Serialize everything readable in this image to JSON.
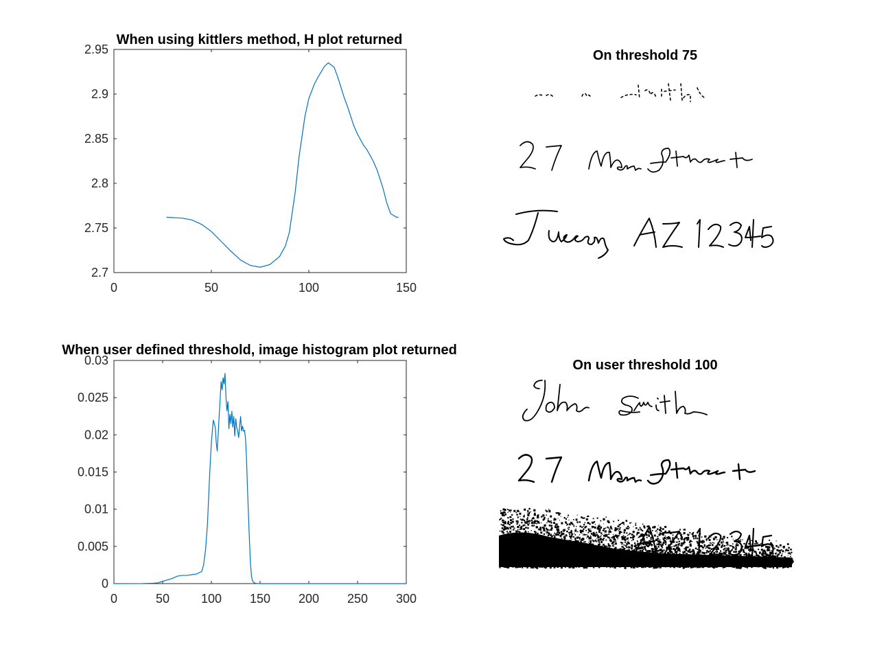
{
  "chart_data": [
    {
      "type": "line",
      "title": "When using kittlers method, H plot returned",
      "xlabel": "",
      "ylabel": "",
      "xlim": [
        0,
        150
      ],
      "ylim": [
        2.7,
        2.95
      ],
      "xticks": [
        0,
        50,
        100,
        150
      ],
      "xtick_labels": [
        "0",
        "50",
        "100",
        "150"
      ],
      "yticks": [
        2.7,
        2.75,
        2.8,
        2.85,
        2.9,
        2.95
      ],
      "ytick_labels": [
        "2.7",
        "2.75",
        "2.8",
        "2.85",
        "2.9",
        "2.95"
      ],
      "grid": false,
      "series": [
        {
          "color": "#0072BD",
          "x": [
            27,
            35,
            40,
            45,
            50,
            55,
            60,
            65,
            70,
            75,
            80,
            85,
            88,
            90,
            93,
            95,
            98,
            100,
            103,
            105,
            108,
            110,
            113,
            115,
            118,
            120,
            123,
            125,
            128,
            130,
            133,
            135,
            138,
            140,
            142,
            145,
            146
          ],
          "y": [
            2.762,
            2.761,
            2.759,
            2.754,
            2.746,
            2.735,
            2.724,
            2.714,
            2.708,
            2.706,
            2.709,
            2.718,
            2.73,
            2.745,
            2.79,
            2.83,
            2.875,
            2.895,
            2.912,
            2.92,
            2.931,
            2.935,
            2.93,
            2.918,
            2.897,
            2.885,
            2.865,
            2.855,
            2.843,
            2.837,
            2.825,
            2.815,
            2.795,
            2.778,
            2.766,
            2.762,
            2.762
          ]
        }
      ]
    },
    {
      "type": "line",
      "title": "When user defined threshold, image histogram plot returned",
      "xlabel": "",
      "ylabel": "",
      "xlim": [
        0,
        300
      ],
      "ylim": [
        0,
        0.03
      ],
      "xticks": [
        0,
        50,
        100,
        150,
        200,
        250,
        300
      ],
      "xtick_labels": [
        "0",
        "50",
        "100",
        "150",
        "200",
        "250",
        "300"
      ],
      "yticks": [
        0,
        0.005,
        0.01,
        0.015,
        0.02,
        0.025,
        0.03
      ],
      "ytick_labels": [
        "0",
        "0.005",
        "0.01",
        "0.015",
        "0.02",
        "0.025",
        "0.03"
      ],
      "grid": false,
      "series": [
        {
          "color": "#0072BD",
          "x": [
            0,
            30,
            40,
            45,
            50,
            55,
            60,
            65,
            70,
            75,
            80,
            85,
            88,
            90,
            92,
            94,
            96,
            98,
            100,
            102,
            104,
            105,
            106,
            108,
            110,
            111,
            112,
            113,
            114,
            115,
            116,
            117,
            118,
            119,
            120,
            121,
            122,
            123,
            124,
            125,
            126,
            127,
            128,
            129,
            130,
            131,
            132,
            133,
            134,
            135,
            136,
            137,
            138,
            139,
            140,
            141,
            142,
            144,
            146,
            150,
            200,
            260,
            300
          ],
          "y": [
            0,
            1e-05,
            5e-05,
            0.0001,
            0.0003,
            0.0005,
            0.0007,
            0.001,
            0.0011,
            0.0011,
            0.0012,
            0.0013,
            0.0015,
            0.0016,
            0.0025,
            0.0045,
            0.008,
            0.014,
            0.019,
            0.022,
            0.021,
            0.019,
            0.0178,
            0.0225,
            0.0272,
            0.026,
            0.0277,
            0.0268,
            0.0283,
            0.025,
            0.0232,
            0.0245,
            0.0208,
            0.0228,
            0.0215,
            0.0232,
            0.021,
            0.0225,
            0.0198,
            0.0222,
            0.021,
            0.0205,
            0.0196,
            0.0212,
            0.0225,
            0.0205,
            0.0212,
            0.0205,
            0.0206,
            0.0195,
            0.017,
            0.013,
            0.0095,
            0.006,
            0.003,
            0.0012,
            0.0004,
            0.0001,
            2e-05,
            0,
            0,
            0,
            0
          ]
        }
      ]
    }
  ],
  "images": [
    {
      "title": "On threshold 75",
      "lines": [
        "John Smith",
        "27 Main Street",
        "Tucson, AZ 12345"
      ]
    },
    {
      "title": "On user threshold 100",
      "lines": [
        "John Smith",
        "27 Main Street",
        "Tucson, AZ 12345"
      ]
    }
  ]
}
